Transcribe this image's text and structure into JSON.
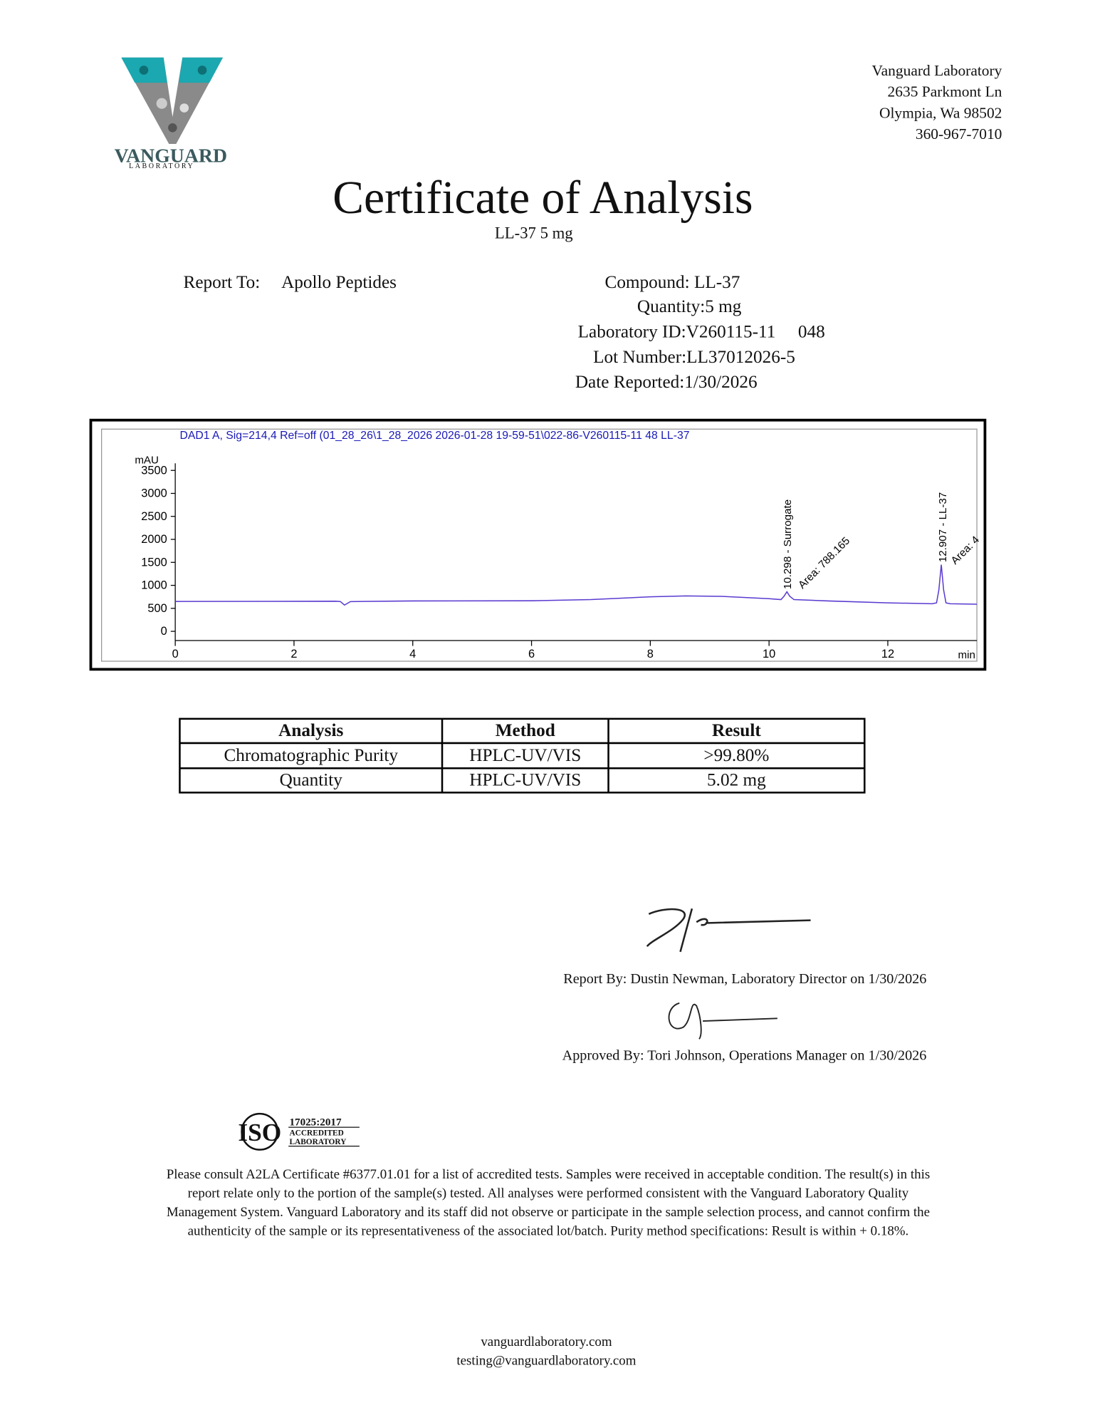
{
  "logo": {
    "name": "VANGUARD",
    "subtitle": "LABORATORY"
  },
  "address": [
    "Vanguard Laboratory",
    "2635 Parkmont Ln",
    "Olympia, Wa 98502",
    "360-967-7010"
  ],
  "title": "Certificate of Analysis",
  "subtitle": "LL-37 5 mg",
  "report_to": {
    "label": "Report To:",
    "value": "Apollo Peptides"
  },
  "details": [
    "Compound: LL-37",
    "Quantity:5 mg",
    "Laboratory ID:V260115-11     048",
    "Lot Number:LL37012026-5",
    "Date Reported:1/30/2026"
  ],
  "chromatogram": {
    "header": "DAD1 A, Sig=214,4 Ref=off (01_28_26\\1_28_2026 2026-01-28 19-59-51\\022-86-V260115-11 48 LL-37",
    "y_label": "mAU",
    "x_label": "min",
    "xlim": [
      0,
      13.5
    ],
    "ylim": [
      -200,
      3850
    ],
    "xticks": [
      0,
      2,
      4,
      6,
      8,
      10,
      12
    ],
    "yticks": [
      0,
      500,
      1000,
      1500,
      2000,
      2500,
      3000,
      3500
    ],
    "trace": {
      "x": [
        0,
        2.7,
        2.78,
        2.85,
        2.95,
        4,
        6,
        7,
        8,
        8.6,
        9.2,
        10,
        10.2,
        10.25,
        10.3,
        10.35,
        10.42,
        11,
        12,
        12.75,
        12.82,
        12.86,
        12.9,
        12.94,
        12.98,
        13.05,
        13.5
      ],
      "y": [
        650,
        655,
        650,
        570,
        648,
        660,
        665,
        690,
        750,
        770,
        760,
        710,
        690,
        760,
        860,
        760,
        690,
        660,
        620,
        600,
        620,
        900,
        1450,
        900,
        620,
        600,
        590
      ]
    },
    "peaks": [
      {
        "label": "10.298 - Surrogate",
        "area": "Area: 788.165"
      },
      {
        "label": "12.907 - LL-37",
        "area": "Area: 4"
      }
    ]
  },
  "table": {
    "header": [
      "Analysis",
      "Method",
      "Result"
    ],
    "rows": [
      [
        "Chromatographic Purity",
        "HPLC-UV/VIS",
        ">99.80%"
      ],
      [
        "Quantity",
        "HPLC-UV/VIS",
        "5.02 mg"
      ]
    ]
  },
  "signatures": [
    "Report By: Dustin Newman, Laboratory Director on 1/30/2026",
    "Approved By: Tori Johnson, Operations Manager on 1/30/2026"
  ],
  "iso": {
    "mark": "ISO",
    "standard": "17025:2017",
    "line1": "ACCREDITED",
    "line2": "LABORATORY"
  },
  "disclaimer": [
    "Please consult A2LA Certificate #6377.01.01 for a list of accredited tests. Samples were received in acceptable condition. The result(s) in this",
    "report relate only to the portion of the sample(s) tested. All analyses were performed consistent with the Vanguard Laboratory Quality",
    "Management System. Vanguard Laboratory and its staff did not observe or participate in the sample selection process, and cannot confirm the",
    "authenticity of the sample or its representativeness of the associated lot/batch. Purity method specifications: Result is within + 0.18%."
  ],
  "footer": [
    "vanguardlaboratory.com",
    "testing@vanguardlaboratory.com"
  ]
}
